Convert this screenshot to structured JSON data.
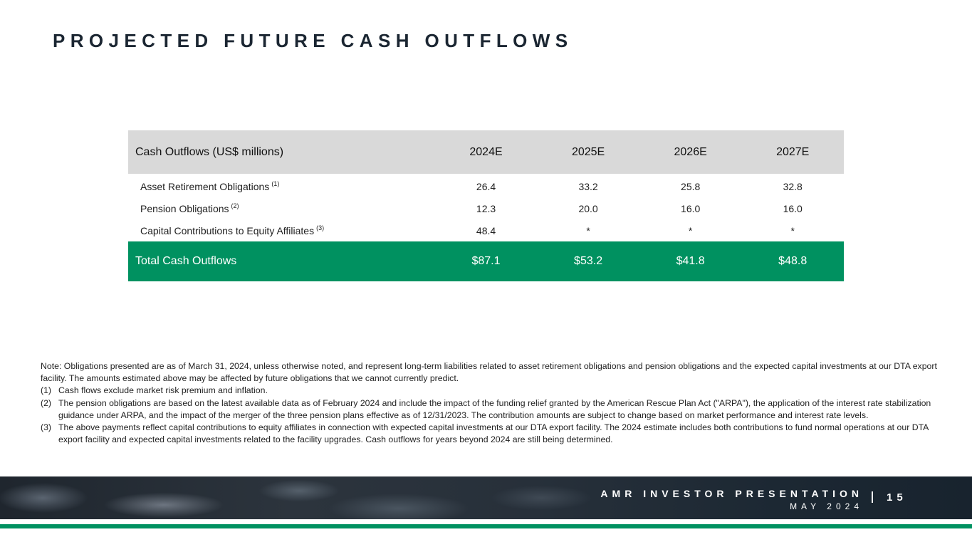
{
  "title": "PROJECTED FUTURE CASH OUTFLOWS",
  "table": {
    "header": {
      "label": "Cash Outflows (US$ millions)",
      "years": [
        "2024E",
        "2025E",
        "2026E",
        "2027E"
      ]
    },
    "rows": [
      {
        "label": "Asset Retirement Obligations",
        "note": "(1)",
        "values": [
          "26.4",
          "33.2",
          "25.8",
          "32.8"
        ]
      },
      {
        "label": "Pension Obligations",
        "note": "(2)",
        "values": [
          "12.3",
          "20.0",
          "16.0",
          "16.0"
        ]
      },
      {
        "label": "Capital Contributions to Equity Affiliates",
        "note": "(3)",
        "values": [
          "48.4",
          "*",
          "*",
          "*"
        ]
      }
    ],
    "total": {
      "label": "Total Cash Outflows",
      "values": [
        "$87.1",
        "$53.2",
        "$41.8",
        "$48.8"
      ]
    }
  },
  "notes": {
    "intro": "Note: Obligations presented are as of March 31, 2024, unless otherwise noted, and represent long-term liabilities related to asset retirement obligations and pension obligations and the expected capital investments at our DTA export facility. The amounts estimated above may be affected by future obligations that we cannot currently predict.",
    "items": [
      {
        "num": "(1)",
        "text": "Cash flows exclude market risk premium and inflation."
      },
      {
        "num": "(2)",
        "text": "The pension obligations are based on the latest available data as of February 2024 and include the impact of the funding relief granted by the American Rescue Plan Act (\"ARPA\"), the application of the interest rate stabilization guidance under ARPA, and the impact of the merger of the three pension plans effective as of 12/31/2023. The contribution amounts are subject to change based on market performance and interest rate levels."
      },
      {
        "num": "(3)",
        "text": "The above payments reflect capital contributions to equity affiliates in connection with expected capital investments at our DTA export facility. The 2024 estimate includes both contributions to fund normal operations at our DTA export facility and expected capital investments related to the facility upgrades. Cash outflows for years beyond 2024 are still being determined."
      }
    ]
  },
  "footer": {
    "title": "AMR INVESTOR PRESENTATION",
    "date": "MAY 2024",
    "page": "15"
  },
  "colors": {
    "accent_green": "#009160",
    "header_gray": "#d9d9d9",
    "footer_dark": "#1f262e"
  }
}
